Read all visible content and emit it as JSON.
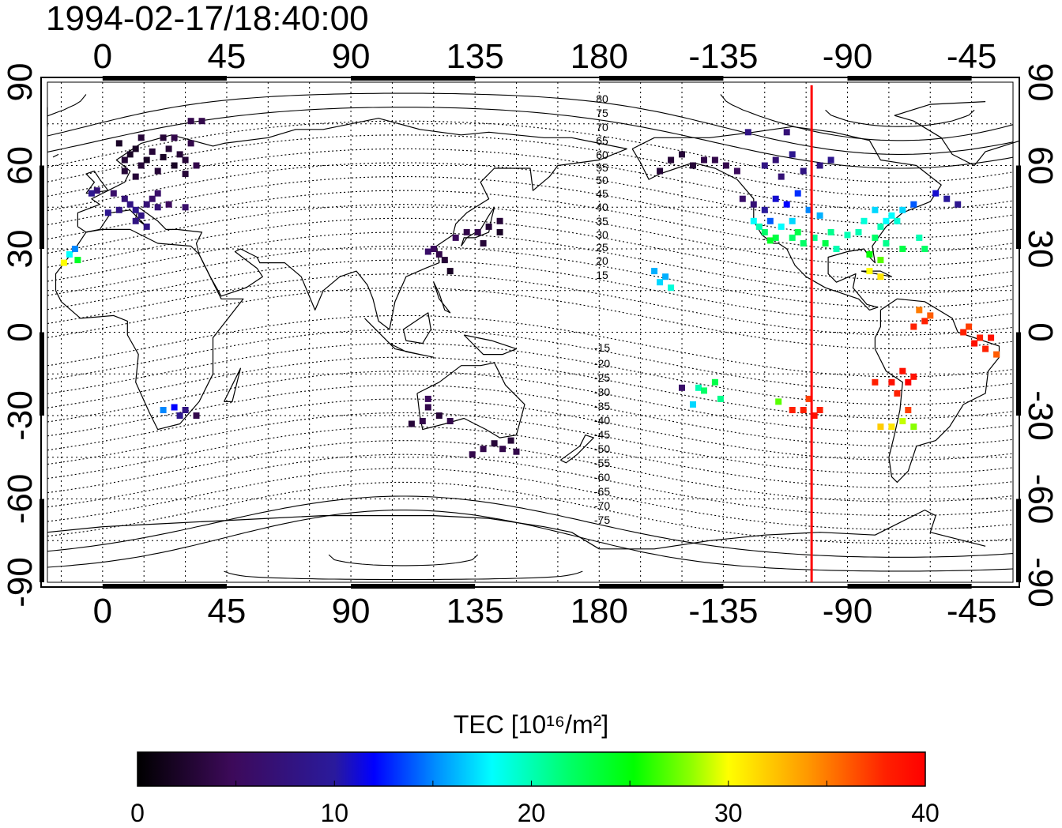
{
  "title": "1994-02-17/18:40:00",
  "colors": {
    "terminator": "#ff0000",
    "coast": "#000000"
  },
  "chart_data": {
    "type": "scatter",
    "xaxis": {
      "ticks": [
        "0",
        "45",
        "90",
        "135",
        "180",
        "-135",
        "-90",
        "-45"
      ],
      "lon_range": [
        -20,
        330
      ]
    },
    "yaxis": {
      "ticks": [
        "90",
        "60",
        "30",
        "0",
        "-30",
        "-60",
        "-90"
      ],
      "lat_range": [
        -90,
        90
      ]
    },
    "contour_labels": {
      "north": [
        "80",
        "75",
        "70",
        "65",
        "60",
        "55",
        "50",
        "45",
        "40",
        "35",
        "30",
        "25",
        "20",
        "15"
      ],
      "south": [
        "-15",
        "-20",
        "-25",
        "-30",
        "-35",
        "-40",
        "-45",
        "-50",
        "-55",
        "-60",
        "-65",
        "-70",
        "-75"
      ]
    },
    "terminator_lon": 257,
    "colorbar": {
      "label": "TEC  [10¹⁶/m²]",
      "min": 0,
      "max": 40,
      "tick_labels": [
        "0",
        "10",
        "20",
        "30",
        "40"
      ]
    },
    "points": [
      [
        8,
        62,
        3
      ],
      [
        10,
        64,
        2
      ],
      [
        12,
        66,
        2
      ],
      [
        14,
        60,
        3
      ],
      [
        16,
        62,
        2
      ],
      [
        18,
        65,
        3
      ],
      [
        20,
        58,
        3
      ],
      [
        22,
        63,
        2
      ],
      [
        24,
        66,
        3
      ],
      [
        26,
        60,
        2
      ],
      [
        28,
        64,
        3
      ],
      [
        30,
        57,
        3
      ],
      [
        32,
        68,
        4
      ],
      [
        34,
        60,
        4
      ],
      [
        12,
        56,
        3
      ],
      [
        8,
        58,
        3
      ],
      [
        6,
        68,
        2
      ],
      [
        26,
        70,
        4
      ],
      [
        14,
        70,
        3
      ],
      [
        22,
        70,
        3
      ],
      [
        30,
        62,
        3
      ],
      [
        -2,
        51,
        7
      ],
      [
        4,
        50,
        6
      ],
      [
        8,
        48,
        7
      ],
      [
        10,
        46,
        8
      ],
      [
        12,
        44,
        9
      ],
      [
        14,
        42,
        8
      ],
      [
        16,
        46,
        7
      ],
      [
        18,
        48,
        6
      ],
      [
        20,
        50,
        6
      ],
      [
        6,
        44,
        8
      ],
      [
        2,
        43,
        9
      ],
      [
        -4,
        50,
        9
      ],
      [
        12,
        40,
        8
      ],
      [
        16,
        38,
        8
      ],
      [
        20,
        45,
        7
      ],
      [
        24,
        46,
        5
      ],
      [
        30,
        45,
        6
      ],
      [
        32,
        76,
        4
      ],
      [
        36,
        76,
        4
      ],
      [
        -12,
        28,
        18
      ],
      [
        -10,
        30,
        15
      ],
      [
        -14,
        25,
        30
      ],
      [
        -9,
        26,
        24
      ],
      [
        22,
        -28,
        15
      ],
      [
        26,
        -27,
        12
      ],
      [
        28,
        -30,
        9
      ],
      [
        30,
        -28,
        8
      ],
      [
        34,
        -30,
        4
      ],
      [
        128,
        34,
        5
      ],
      [
        132,
        36,
        4
      ],
      [
        136,
        36,
        4
      ],
      [
        140,
        38,
        3
      ],
      [
        144,
        36,
        2
      ],
      [
        144,
        40,
        3
      ],
      [
        120,
        30,
        5
      ],
      [
        122,
        28,
        4
      ],
      [
        118,
        29,
        6
      ],
      [
        124,
        26,
        3
      ],
      [
        126,
        22,
        2
      ],
      [
        138,
        32,
        3
      ],
      [
        118,
        -24,
        5
      ],
      [
        122,
        -30,
        3
      ],
      [
        126,
        -32,
        4
      ],
      [
        116,
        -32,
        4
      ],
      [
        112,
        -33,
        3
      ],
      [
        118,
        -27,
        4
      ],
      [
        138,
        -42,
        4
      ],
      [
        142,
        -40,
        3
      ],
      [
        145,
        -42,
        4
      ],
      [
        148,
        -39,
        3
      ],
      [
        150,
        -43,
        4
      ],
      [
        134,
        -44,
        4
      ],
      [
        -142,
        62,
        4
      ],
      [
        -150,
        64,
        3
      ],
      [
        -146,
        60,
        3
      ],
      [
        -138,
        62,
        4
      ],
      [
        -134,
        60,
        4
      ],
      [
        -130,
        58,
        5
      ],
      [
        -154,
        62,
        3
      ],
      [
        -158,
        58,
        3
      ],
      [
        -114,
        56,
        7
      ],
      [
        -120,
        60,
        8
      ],
      [
        -116,
        62,
        7
      ],
      [
        -110,
        64,
        9
      ],
      [
        -106,
        58,
        8
      ],
      [
        -100,
        60,
        8
      ],
      [
        -96,
        62,
        9
      ],
      [
        -126,
        72,
        8
      ],
      [
        -112,
        72,
        7
      ],
      [
        -128,
        48,
        6
      ],
      [
        -124,
        46,
        7
      ],
      [
        -120,
        44,
        10
      ],
      [
        -116,
        48,
        11
      ],
      [
        -112,
        46,
        12
      ],
      [
        -108,
        50,
        13
      ],
      [
        -104,
        44,
        15
      ],
      [
        -100,
        42,
        16
      ],
      [
        -118,
        40,
        14
      ],
      [
        -114,
        38,
        18
      ],
      [
        -110,
        40,
        17
      ],
      [
        -122,
        38,
        20
      ],
      [
        -120,
        36,
        22
      ],
      [
        -116,
        34,
        23
      ],
      [
        -110,
        34,
        22
      ],
      [
        -106,
        32,
        22
      ],
      [
        -102,
        34,
        21
      ],
      [
        -98,
        32,
        23
      ],
      [
        -94,
        30,
        20
      ],
      [
        -124,
        40,
        18
      ],
      [
        -118,
        33,
        24
      ],
      [
        -108,
        36,
        23
      ],
      [
        -96,
        36,
        21
      ],
      [
        -90,
        35,
        20
      ],
      [
        -80,
        44,
        17
      ],
      [
        -76,
        40,
        18
      ],
      [
        -74,
        42,
        18
      ],
      [
        -70,
        44,
        17
      ],
      [
        -66,
        46,
        14
      ],
      [
        -72,
        40,
        19
      ],
      [
        -78,
        38,
        20
      ],
      [
        -84,
        40,
        19
      ],
      [
        -86,
        36,
        20
      ],
      [
        -80,
        34,
        22
      ],
      [
        -76,
        32,
        21
      ],
      [
        -70,
        30,
        23
      ],
      [
        -82,
        28,
        25
      ],
      [
        -78,
        26,
        27
      ],
      [
        -82,
        22,
        30
      ],
      [
        -78,
        20,
        31
      ],
      [
        -62,
        30,
        22
      ],
      [
        -64,
        34,
        20
      ],
      [
        -58,
        50,
        11
      ],
      [
        -54,
        48,
        10
      ],
      [
        -50,
        46,
        9
      ],
      [
        -160,
        22,
        16
      ],
      [
        -156,
        20,
        16
      ],
      [
        -158,
        18,
        17
      ],
      [
        -154,
        16,
        19
      ],
      [
        -150,
        -20,
        6
      ],
      [
        -144,
        -20,
        20
      ],
      [
        -142,
        -21,
        22
      ],
      [
        -138,
        -18,
        23
      ],
      [
        -136,
        -24,
        21
      ],
      [
        -146,
        -26,
        17
      ],
      [
        -115,
        -25,
        27
      ],
      [
        -110,
        -28,
        38
      ],
      [
        -106,
        -28,
        38
      ],
      [
        -104,
        -24,
        37
      ],
      [
        -102,
        -30,
        39
      ],
      [
        -100,
        -28,
        38
      ],
      [
        -64,
        8,
        35
      ],
      [
        -62,
        4,
        38
      ],
      [
        -66,
        2,
        38
      ],
      [
        -60,
        6,
        36
      ],
      [
        -48,
        0,
        38
      ],
      [
        -44,
        -4,
        39
      ],
      [
        -40,
        -6,
        38
      ],
      [
        -38,
        -2,
        39
      ],
      [
        -36,
        -8,
        36
      ],
      [
        -42,
        -2,
        38
      ],
      [
        -46,
        2,
        37
      ],
      [
        -70,
        -14,
        39
      ],
      [
        -68,
        -18,
        40
      ],
      [
        -66,
        -16,
        39
      ],
      [
        -74,
        -18,
        39
      ],
      [
        -80,
        -18,
        38
      ],
      [
        -72,
        -22,
        38
      ],
      [
        -74,
        -34,
        31
      ],
      [
        -70,
        -32,
        29
      ],
      [
        -66,
        -34,
        28
      ],
      [
        -78,
        -34,
        32
      ],
      [
        -68,
        -28,
        37
      ]
    ]
  }
}
